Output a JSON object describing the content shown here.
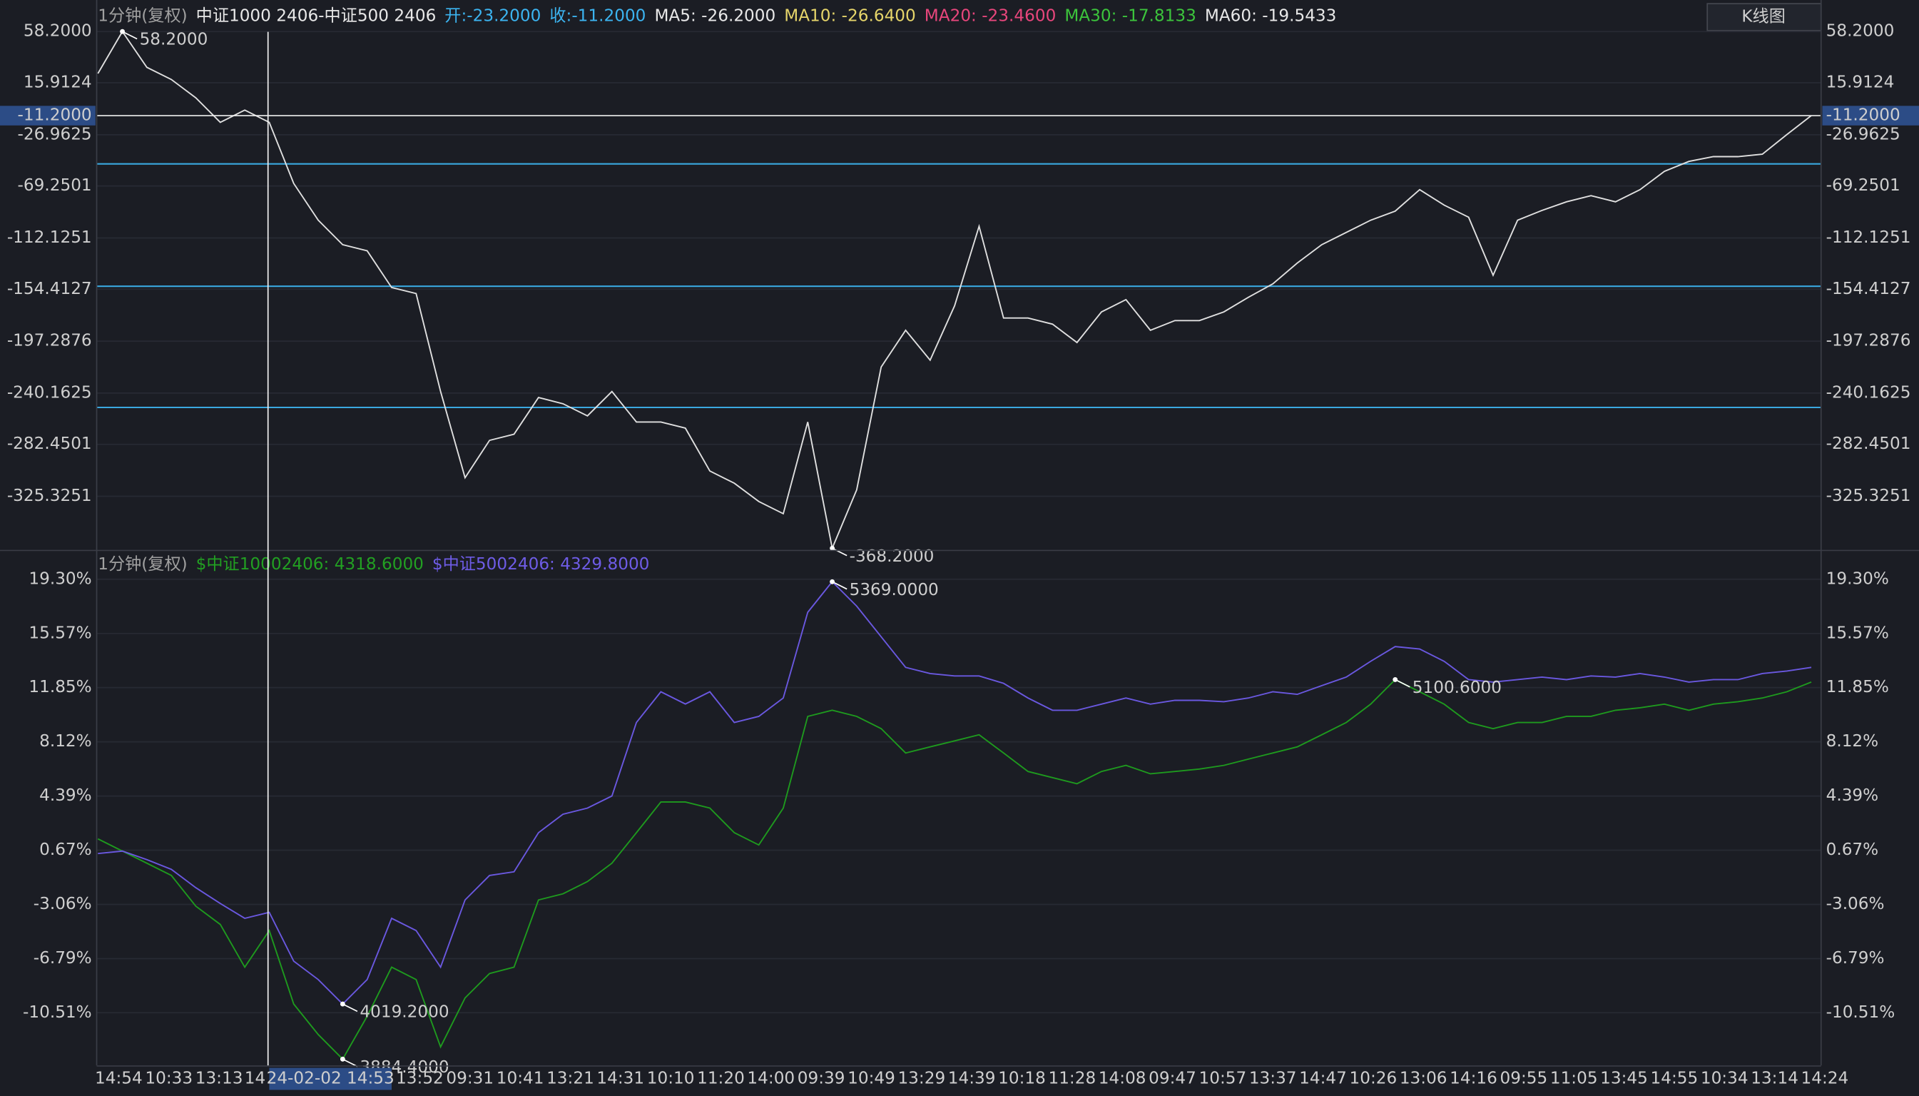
{
  "chart_data": [
    {
      "type": "line",
      "header": [
        {
          "text": "1分钟(复权)",
          "color": "#a0a0a0"
        },
        {
          "text": "中证1000 2406-中证500 2406",
          "color": "#e8e8e8"
        },
        {
          "text": "开:-23.2000",
          "color": "#3cb4f0"
        },
        {
          "text": "收:-11.2000",
          "color": "#3cb4f0"
        },
        {
          "text": "MA5: -26.2000",
          "color": "#e8e8e8"
        },
        {
          "text": "MA10: -26.6400",
          "color": "#e6d56a"
        },
        {
          "text": "MA20: -23.4600",
          "color": "#e8467c"
        },
        {
          "text": "MA30: -17.8133",
          "color": "#3cc43c"
        },
        {
          "text": "MA60: -19.5433",
          "color": "#e8e8e8"
        }
      ],
      "series": [
        {
          "color": "#e0e0e0",
          "values": [
            23.6,
            58.2,
            28.7,
            18.6,
            3.5,
            -16.7,
            -6.6,
            -16.7,
            -67.2,
            -97.5,
            -117.7,
            -122.7,
            -153.0,
            -158.0,
            -238.8,
            -310.0,
            -279.2,
            -274.1,
            -243.8,
            -248.9,
            -259.0,
            -238.8,
            -264.0,
            -264.0,
            -269.1,
            -304.4,
            -314.5,
            -329.6,
            -339.7,
            -264.0,
            -368.2,
            -320.0,
            -218.6,
            -188.3,
            -213.0,
            -168.1,
            -102.5,
            -178.2,
            -178.2,
            -183.3,
            -198.4,
            -173.2,
            -163.1,
            -188.3,
            -180.3,
            -180.3,
            -173.2,
            -161.1,
            -150.0,
            -132.8,
            -117.7,
            -107.6,
            -97.5,
            -90.0,
            -72.3,
            -85.0,
            -95.0,
            -142.9,
            -97.5,
            -89.4,
            -82.3,
            -77.3,
            -82.3,
            -72.3,
            -57.1,
            -49.0,
            -45.0,
            -45.0,
            -43.0,
            -26.8,
            -11.2
          ]
        }
      ],
      "ylim": [
        -368.5,
        62
      ],
      "yticks": [
        {
          "value": 58.2,
          "label": "58.2000"
        },
        {
          "value": 15.9124,
          "label": "15.9124"
        },
        {
          "value": -26.9625,
          "label": "-26.9625"
        },
        {
          "value": -69.2501,
          "label": "-69.2501"
        },
        {
          "value": -112.1251,
          "label": "-112.1251"
        },
        {
          "value": -154.4127,
          "label": "-154.4127"
        },
        {
          "value": -197.2876,
          "label": "-197.2876"
        },
        {
          "value": -240.1625,
          "label": "-240.1625"
        },
        {
          "value": -282.4501,
          "label": "-282.4501"
        },
        {
          "value": -325.3251,
          "label": "-325.3251"
        }
      ],
      "hlines": [
        -51,
        -152,
        -252
      ],
      "hline_color": "#3aa8e0",
      "last": {
        "value": -11.2,
        "label": "-11.2000"
      },
      "annotations": [
        {
          "series": 0,
          "index": 1,
          "label": "58.2000"
        },
        {
          "series": 0,
          "index": 30,
          "label": "-368.2000"
        }
      ]
    },
    {
      "type": "line",
      "header": [
        {
          "text": "1分钟(复权)",
          "color": "#a0a0a0"
        },
        {
          "text": "$中证10002406: 4318.6000",
          "color": "#22a022"
        },
        {
          "text": "$中证5002406: 4329.8000",
          "color": "#6e5ce6"
        }
      ],
      "series": [
        {
          "color": "#1e9a1e",
          "values": [
            1.45,
            0.61,
            -0.23,
            -1.07,
            -3.18,
            -4.44,
            -7.38,
            -4.86,
            -9.91,
            -12.01,
            -13.7,
            -10.75,
            -7.38,
            -8.23,
            -12.86,
            -9.49,
            -7.81,
            -7.38,
            -2.75,
            -2.33,
            -1.49,
            -0.23,
            1.87,
            3.98,
            3.98,
            3.56,
            1.87,
            1.03,
            3.56,
            9.87,
            10.29,
            9.87,
            9.03,
            7.35,
            7.77,
            8.19,
            8.61,
            7.35,
            6.08,
            5.66,
            5.24,
            6.08,
            6.5,
            5.92,
            6.08,
            6.25,
            6.5,
            6.93,
            7.35,
            7.77,
            8.61,
            9.45,
            10.71,
            12.4,
            11.56,
            10.71,
            9.45,
            9.03,
            9.45,
            9.45,
            9.87,
            9.87,
            10.29,
            10.46,
            10.71,
            10.29,
            10.71,
            10.88,
            11.13,
            11.56,
            12.23
          ]
        },
        {
          "color": "#6a58e0",
          "values": [
            0.44,
            0.61,
            0.02,
            -0.65,
            -1.91,
            -3.0,
            -4.02,
            -3.6,
            -6.96,
            -8.23,
            -9.91,
            -8.23,
            -4.02,
            -4.86,
            -7.38,
            -2.75,
            -1.07,
            -0.82,
            1.87,
            3.14,
            3.56,
            4.4,
            9.45,
            11.56,
            10.72,
            11.56,
            9.45,
            9.87,
            11.13,
            17.03,
            19.13,
            17.45,
            15.34,
            13.24,
            12.82,
            12.65,
            12.65,
            12.14,
            11.13,
            10.29,
            10.29,
            10.71,
            11.13,
            10.71,
            10.97,
            10.97,
            10.88,
            11.13,
            11.56,
            11.39,
            11.98,
            12.57,
            13.66,
            14.67,
            14.5,
            13.66,
            12.4,
            12.23,
            12.4,
            12.57,
            12.4,
            12.65,
            12.57,
            12.82,
            12.57,
            12.23,
            12.4,
            12.4,
            12.82,
            12.99,
            13.24
          ]
        }
      ],
      "ylim": [
        -14.13,
        21.07
      ],
      "yticks": [
        {
          "value": 19.3,
          "label": "19.30%"
        },
        {
          "value": 15.57,
          "label": "15.57%"
        },
        {
          "value": 11.85,
          "label": "11.85%"
        },
        {
          "value": 8.12,
          "label": "8.12%"
        },
        {
          "value": 4.39,
          "label": "4.39%"
        },
        {
          "value": 0.67,
          "label": "0.67%"
        },
        {
          "value": -3.06,
          "label": "-3.06%"
        },
        {
          "value": -6.79,
          "label": "-6.79%"
        },
        {
          "value": -10.51,
          "label": "-10.51%"
        }
      ],
      "annotations": [
        {
          "series": 1,
          "index": 30,
          "label": "5369.0000"
        },
        {
          "series": 1,
          "index": 10,
          "label": "4019.2000"
        },
        {
          "series": 0,
          "index": 10,
          "label": "3884.4000"
        },
        {
          "series": 0,
          "index": 53,
          "label": "5100.6000"
        }
      ]
    }
  ],
  "x_axis": {
    "labels": [
      "14:54",
      "10:33",
      "13:13",
      "14",
      null,
      null,
      "13:52",
      "09:31",
      "10:41",
      "13:21",
      "14:31",
      "10:10",
      "11:20",
      "14:00",
      "09:39",
      "10:49",
      "13:29",
      "14:39",
      "10:18",
      "11:28",
      "14:08",
      "09:47",
      "10:57",
      "13:37",
      "14:47",
      "10:26",
      "13:06",
      "14:16",
      "09:55",
      "11:05",
      "13:45",
      "14:55",
      "10:34",
      "13:14",
      "14:24"
    ],
    "cursor_label": "24-02-02 14:53"
  },
  "button": "K线图"
}
